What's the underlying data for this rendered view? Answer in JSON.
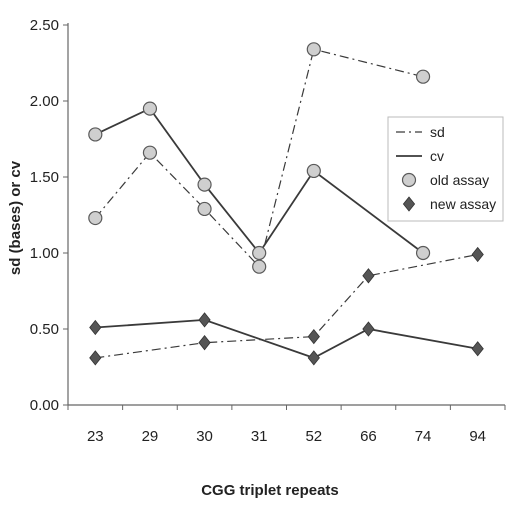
{
  "chart_data": {
    "type": "line",
    "title": "",
    "xlabel": "CGG triplet repeats",
    "ylabel": "sd (bases) or cv",
    "categories": [
      "23",
      "29",
      "30",
      "31",
      "52",
      "66",
      "74",
      "94"
    ],
    "ylim": [
      0,
      2.5
    ],
    "yticks": [
      "0.00",
      "0.50",
      "1.00",
      "1.50",
      "2.00",
      "2.50"
    ],
    "grid": false,
    "legend_position": "right",
    "legend": [
      {
        "label": "sd",
        "kind": "line",
        "style": "dashdot"
      },
      {
        "label": "cv",
        "kind": "line",
        "style": "solid"
      },
      {
        "label": "old assay",
        "kind": "marker",
        "marker": "circle"
      },
      {
        "label": "new assay",
        "kind": "marker",
        "marker": "diamond"
      }
    ],
    "series": [
      {
        "measure": "sd",
        "assay": "old assay",
        "line_style": "dashdot",
        "marker": "circle",
        "values": [
          1.23,
          1.66,
          1.29,
          0.91,
          2.34,
          null,
          2.16,
          null
        ]
      },
      {
        "measure": "cv",
        "assay": "old assay",
        "line_style": "solid",
        "marker": "circle",
        "values": [
          1.78,
          1.95,
          1.45,
          1.0,
          1.54,
          null,
          1.0,
          null
        ]
      },
      {
        "measure": "sd",
        "assay": "new assay",
        "line_style": "dashdot",
        "marker": "diamond",
        "values": [
          0.31,
          null,
          0.41,
          null,
          0.45,
          0.85,
          null,
          0.99
        ]
      },
      {
        "measure": "cv",
        "assay": "new assay",
        "line_style": "solid",
        "marker": "diamond",
        "values": [
          0.51,
          null,
          0.56,
          null,
          0.31,
          0.5,
          null,
          0.37
        ]
      }
    ],
    "colors": {
      "line": "#3a3a3a",
      "circle_fill": "#cfcfcf",
      "circle_stroke": "#5a5a5a",
      "diamond_fill": "#555555",
      "axis": "#666666"
    }
  }
}
